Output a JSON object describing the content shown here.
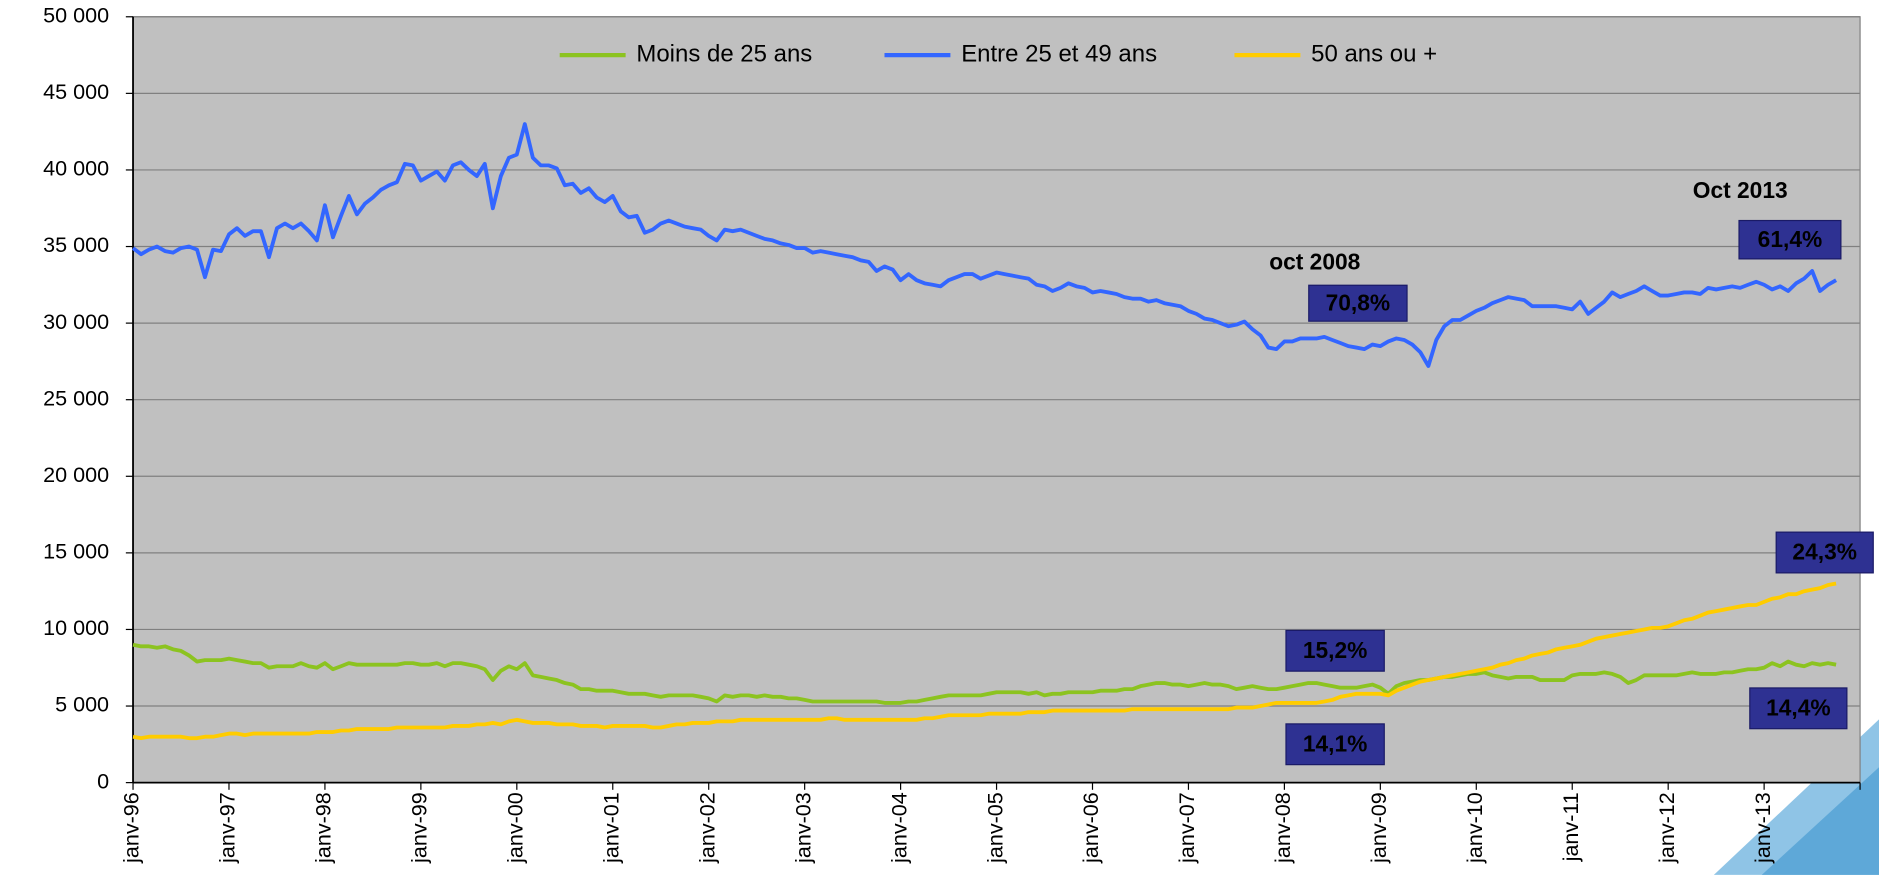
{
  "chart_data": {
    "type": "line",
    "categories": [
      "janv-96",
      null,
      null,
      null,
      null,
      null,
      null,
      null,
      null,
      null,
      null,
      null,
      "janv-97",
      null,
      null,
      null,
      null,
      null,
      null,
      null,
      null,
      null,
      null,
      null,
      "janv-98",
      null,
      null,
      null,
      null,
      null,
      null,
      null,
      null,
      null,
      null,
      null,
      "janv-99",
      null,
      null,
      null,
      null,
      null,
      null,
      null,
      null,
      null,
      null,
      null,
      "janv-00",
      null,
      null,
      null,
      null,
      null,
      null,
      null,
      null,
      null,
      null,
      null,
      "janv-01",
      null,
      null,
      null,
      null,
      null,
      null,
      null,
      null,
      null,
      null,
      null,
      "janv-02",
      null,
      null,
      null,
      null,
      null,
      null,
      null,
      null,
      null,
      null,
      null,
      "janv-03",
      null,
      null,
      null,
      null,
      null,
      null,
      null,
      null,
      null,
      null,
      null,
      "janv-04",
      null,
      null,
      null,
      null,
      null,
      null,
      null,
      null,
      null,
      null,
      null,
      "janv-05",
      null,
      null,
      null,
      null,
      null,
      null,
      null,
      null,
      null,
      null,
      null,
      "janv-06",
      null,
      null,
      null,
      null,
      null,
      null,
      null,
      null,
      null,
      null,
      null,
      "janv-07",
      null,
      null,
      null,
      null,
      null,
      null,
      null,
      null,
      null,
      null,
      null,
      "janv-08",
      null,
      null,
      null,
      null,
      null,
      null,
      null,
      null,
      null,
      null,
      null,
      "janv-09",
      null,
      null,
      null,
      null,
      null,
      null,
      null,
      null,
      null,
      null,
      null,
      "janv-10",
      null,
      null,
      null,
      null,
      null,
      null,
      null,
      null,
      null,
      null,
      null,
      "janv-11",
      null,
      null,
      null,
      null,
      null,
      null,
      null,
      null,
      null,
      null,
      null,
      "janv-12",
      null,
      null,
      null,
      null,
      null,
      null,
      null,
      null,
      null,
      null,
      null,
      "janv-13",
      null,
      null,
      null,
      null,
      null,
      null,
      null,
      null,
      null
    ],
    "series": [
      {
        "name": "Moins de 25 ans",
        "color": "#8cc320",
        "values": [
          9000,
          8900,
          8900,
          8800,
          8900,
          8700,
          8600,
          8300,
          7900,
          8000,
          8000,
          8000,
          8100,
          8000,
          7900,
          7800,
          7800,
          7500,
          7600,
          7600,
          7600,
          7800,
          7600,
          7500,
          7800,
          7400,
          7600,
          7800,
          7700,
          7700,
          7700,
          7700,
          7700,
          7700,
          7800,
          7800,
          7700,
          7700,
          7800,
          7600,
          7800,
          7800,
          7700,
          7600,
          7400,
          6700,
          7300,
          7600,
          7400,
          7800,
          7000,
          6900,
          6800,
          6700,
          6500,
          6400,
          6100,
          6100,
          6000,
          6000,
          6000,
          5900,
          5800,
          5800,
          5800,
          5700,
          5600,
          5700,
          5700,
          5700,
          5700,
          5600,
          5500,
          5300,
          5700,
          5600,
          5700,
          5700,
          5600,
          5700,
          5600,
          5600,
          5500,
          5500,
          5400,
          5300,
          5300,
          5300,
          5300,
          5300,
          5300,
          5300,
          5300,
          5300,
          5200,
          5200,
          5200,
          5300,
          5300,
          5400,
          5500,
          5600,
          5700,
          5700,
          5700,
          5700,
          5700,
          5800,
          5900,
          5900,
          5900,
          5900,
          5800,
          5900,
          5700,
          5800,
          5800,
          5900,
          5900,
          5900,
          5900,
          6000,
          6000,
          6000,
          6100,
          6100,
          6300,
          6400,
          6500,
          6500,
          6400,
          6400,
          6300,
          6400,
          6500,
          6400,
          6400,
          6300,
          6100,
          6200,
          6300,
          6200,
          6100,
          6100,
          6200,
          6300,
          6400,
          6500,
          6500,
          6400,
          6300,
          6200,
          6200,
          6200,
          6300,
          6400,
          6200,
          5800,
          6300,
          6500,
          6600,
          6700,
          6700,
          6800,
          6900,
          6900,
          7000,
          7100,
          7100,
          7200,
          7000,
          6900,
          6800,
          6900,
          6900,
          6900,
          6700,
          6700,
          6700,
          6700,
          7000,
          7100,
          7100,
          7100,
          7200,
          7100,
          6900,
          6500,
          6700,
          7000,
          7000,
          7000,
          7000,
          7000,
          7100,
          7200,
          7100,
          7100,
          7100,
          7200,
          7200,
          7300,
          7400,
          7400,
          7500,
          7800,
          7600,
          7900,
          7700,
          7600,
          7800,
          7700,
          7800,
          7700
        ]
      },
      {
        "name": "Entre 25 et 49 ans",
        "color": "#3366ff",
        "values": [
          34900,
          34500,
          34800,
          35000,
          34700,
          34600,
          34900,
          35000,
          34800,
          33000,
          34800,
          34700,
          35800,
          36200,
          35700,
          36000,
          36000,
          34300,
          36200,
          36500,
          36200,
          36500,
          36000,
          35400,
          37700,
          35600,
          37000,
          38300,
          37100,
          37800,
          38200,
          38700,
          39000,
          39200,
          40400,
          40300,
          39300,
          39600,
          39900,
          39300,
          40300,
          40500,
          40000,
          39600,
          40400,
          37500,
          39600,
          40800,
          41000,
          43000,
          40800,
          40300,
          40300,
          40100,
          39000,
          39100,
          38500,
          38800,
          38200,
          37900,
          38300,
          37300,
          36900,
          37000,
          35900,
          36100,
          36500,
          36700,
          36500,
          36300,
          36200,
          36100,
          35700,
          35400,
          36100,
          36000,
          36100,
          35900,
          35700,
          35500,
          35400,
          35200,
          35100,
          34900,
          34900,
          34600,
          34700,
          34600,
          34500,
          34400,
          34300,
          34100,
          34000,
          33400,
          33700,
          33500,
          32800,
          33200,
          32800,
          32600,
          32500,
          32400,
          32800,
          33000,
          33200,
          33200,
          32900,
          33100,
          33300,
          33200,
          33100,
          33000,
          32900,
          32500,
          32400,
          32100,
          32300,
          32600,
          32400,
          32300,
          32000,
          32100,
          32000,
          31900,
          31700,
          31600,
          31600,
          31400,
          31500,
          31300,
          31200,
          31100,
          30800,
          30600,
          30300,
          30200,
          30000,
          29800,
          29900,
          30100,
          29600,
          29200,
          28400,
          28300,
          28800,
          28800,
          29000,
          29000,
          29000,
          29100,
          28900,
          28700,
          28500,
          28400,
          28300,
          28600,
          28500,
          28800,
          29000,
          28900,
          28600,
          28100,
          27200,
          28900,
          29800,
          30200,
          30200,
          30500,
          30800,
          31000,
          31300,
          31500,
          31700,
          31600,
          31500,
          31100,
          31100,
          31100,
          31100,
          31000,
          30900,
          31400,
          30600,
          31000,
          31400,
          32000,
          31700,
          31900,
          32100,
          32400,
          32100,
          31800,
          31800,
          31900,
          32000,
          32000,
          31900,
          32300,
          32200,
          32300,
          32400,
          32300,
          32500,
          32700,
          32500,
          32200,
          32400,
          32100,
          32600,
          32900,
          33400,
          32100,
          32500,
          32800
        ]
      },
      {
        "name": "50 ans ou +",
        "color": "#ffcc00",
        "values": [
          3000,
          2900,
          3000,
          3000,
          3000,
          3000,
          3000,
          2900,
          2900,
          3000,
          3000,
          3100,
          3200,
          3200,
          3100,
          3200,
          3200,
          3200,
          3200,
          3200,
          3200,
          3200,
          3200,
          3300,
          3300,
          3300,
          3400,
          3400,
          3500,
          3500,
          3500,
          3500,
          3500,
          3600,
          3600,
          3600,
          3600,
          3600,
          3600,
          3600,
          3700,
          3700,
          3700,
          3800,
          3800,
          3900,
          3800,
          4000,
          4100,
          4000,
          3900,
          3900,
          3900,
          3800,
          3800,
          3800,
          3700,
          3700,
          3700,
          3600,
          3700,
          3700,
          3700,
          3700,
          3700,
          3600,
          3600,
          3700,
          3800,
          3800,
          3900,
          3900,
          3900,
          4000,
          4000,
          4000,
          4100,
          4100,
          4100,
          4100,
          4100,
          4100,
          4100,
          4100,
          4100,
          4100,
          4100,
          4200,
          4200,
          4100,
          4100,
          4100,
          4100,
          4100,
          4100,
          4100,
          4100,
          4100,
          4100,
          4200,
          4200,
          4300,
          4400,
          4400,
          4400,
          4400,
          4400,
          4500,
          4500,
          4500,
          4500,
          4500,
          4600,
          4600,
          4600,
          4700,
          4700,
          4700,
          4700,
          4700,
          4700,
          4700,
          4700,
          4700,
          4700,
          4800,
          4800,
          4800,
          4800,
          4800,
          4800,
          4800,
          4800,
          4800,
          4800,
          4800,
          4800,
          4800,
          4900,
          4900,
          4900,
          5000,
          5100,
          5200,
          5200,
          5200,
          5200,
          5200,
          5200,
          5300,
          5400,
          5600,
          5700,
          5800,
          5800,
          5800,
          5800,
          5700,
          6000,
          6200,
          6400,
          6600,
          6700,
          6800,
          6900,
          7000,
          7100,
          7200,
          7300,
          7400,
          7500,
          7700,
          7800,
          8000,
          8100,
          8300,
          8400,
          8500,
          8700,
          8800,
          8900,
          9000,
          9200,
          9400,
          9500,
          9600,
          9700,
          9800,
          9900,
          10000,
          10100,
          10100,
          10200,
          10400,
          10600,
          10700,
          10900,
          11100,
          11200,
          11300,
          11400,
          11500,
          11600,
          11600,
          11800,
          12000,
          12100,
          12300,
          12300,
          12500,
          12600,
          12700,
          12900,
          13000
        ]
      }
    ],
    "ylim": [
      0,
      50000
    ],
    "yticks": [
      0,
      {
        "value": 5000,
        "label": "5 000"
      },
      {
        "value": 10000,
        "label": "10 000"
      },
      {
        "value": 15000,
        "label": "15 000"
      },
      {
        "value": 20000,
        "label": "20 000"
      },
      {
        "value": 25000,
        "label": "25 000"
      },
      {
        "value": 30000,
        "label": "30 000"
      },
      {
        "value": 35000,
        "label": "35 000"
      },
      {
        "value": 40000,
        "label": "40 000"
      },
      {
        "value": 45000,
        "label": "45 000"
      },
      {
        "value": 50000,
        "label": "50 000"
      }
    ],
    "grid": true,
    "legend": "top",
    "annotations": [
      {
        "text": "oct 2008",
        "color": "#333333"
      },
      {
        "text": "70,8%",
        "color": "#00b0f0",
        "box": "#2e3192"
      },
      {
        "text": "15,2%",
        "color": "#92d050",
        "box": "#2e3192"
      },
      {
        "text": "14,1%",
        "color": "#ffcc00",
        "box": "#2e3192"
      },
      {
        "text": "Oct 2013",
        "color": "#333333"
      },
      {
        "text": "61,4%",
        "color": "#00b0f0",
        "box": "#2e3192"
      },
      {
        "text": "24,3%",
        "color": "#ffcc00",
        "box": "#2e3192"
      },
      {
        "text": "14,4%",
        "color": "#92d050",
        "box": "#2e3192"
      }
    ]
  }
}
